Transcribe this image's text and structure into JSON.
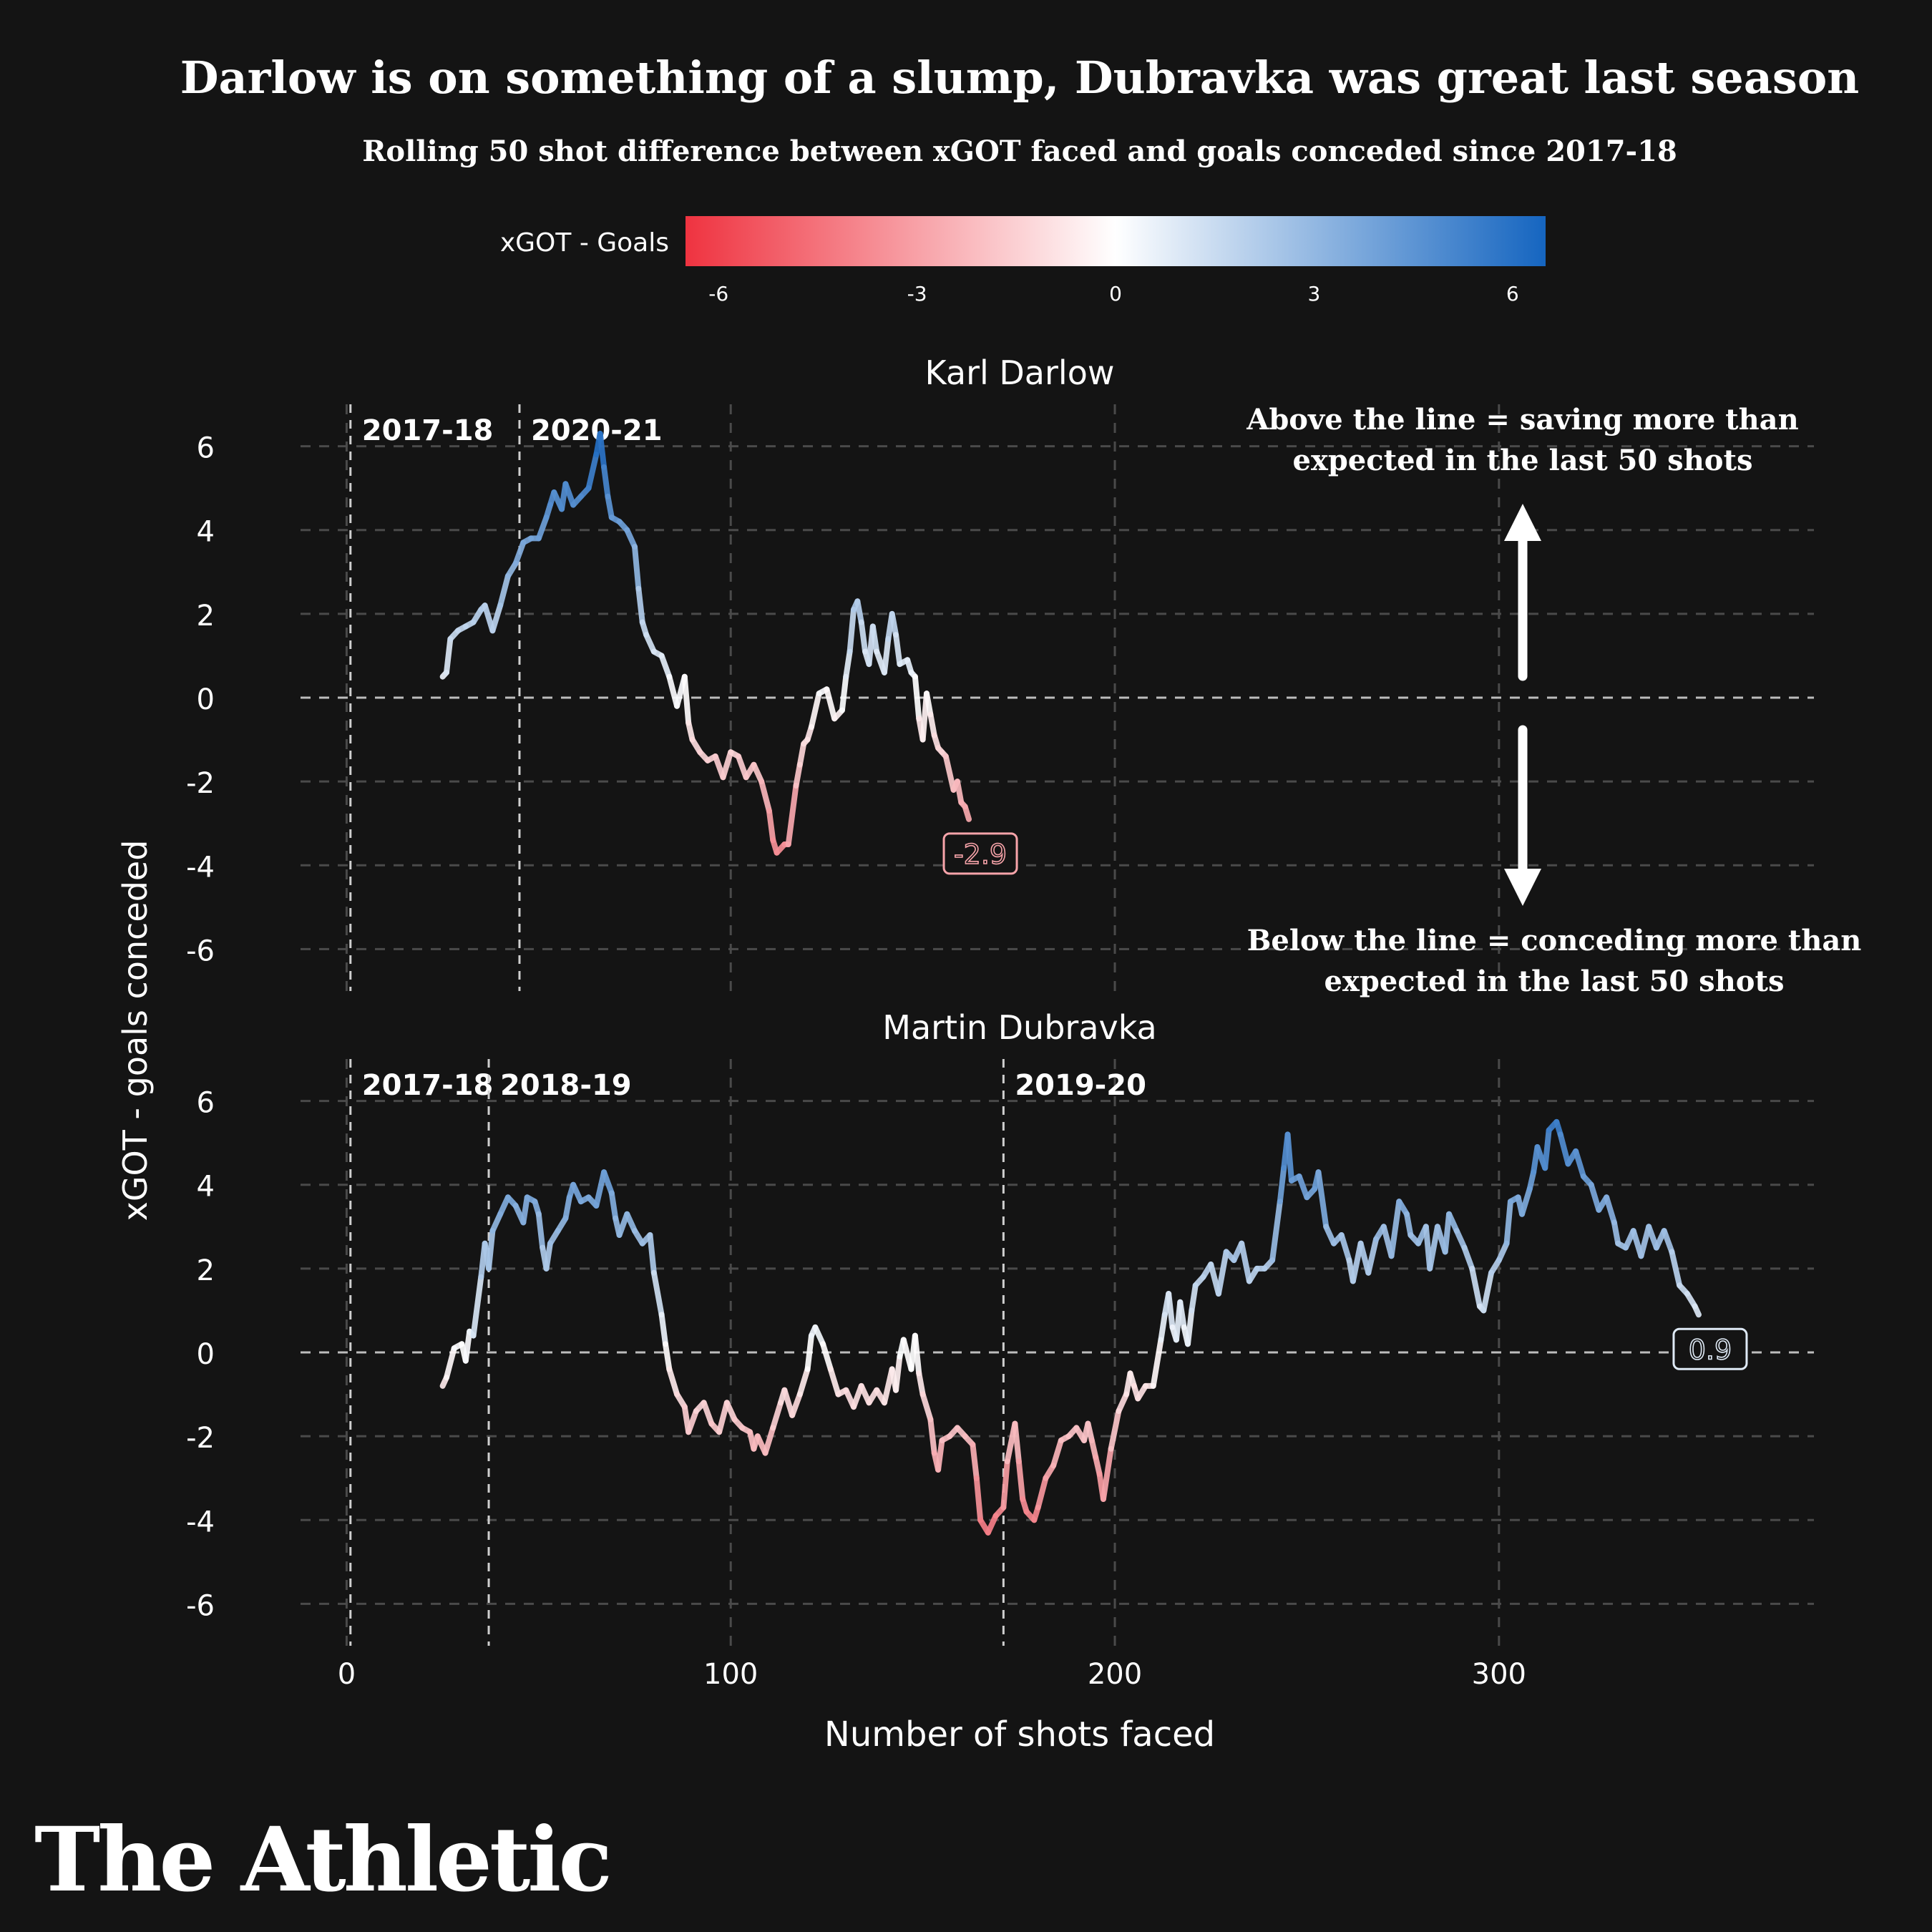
{
  "title": "Darlow is on something of a slump, Dubravka was great last season",
  "subtitle": "Rolling 50 shot difference between xGOT faced and goals conceded since 2017-18",
  "brand": "The Athletic",
  "legend": {
    "label": "xGOT - Goals",
    "ticks": [
      "-6",
      "-3",
      "0",
      "3",
      "6"
    ],
    "tick_values": [
      -6,
      -3,
      0,
      3,
      6
    ],
    "range": [
      -6.5,
      6.5
    ],
    "colors": {
      "low": "#ef3340",
      "mid": "#ffffff",
      "high": "#1565c0"
    }
  },
  "colors": {
    "background": "#141414",
    "text": "#ffffff",
    "grid": "#555555",
    "low": "#ef3340",
    "mid": "#ffffff",
    "high": "#1565c0"
  },
  "annotations": {
    "above": [
      "Above the line = saving more than",
      "expected in the last 50 shots"
    ],
    "below": [
      "Below the line = conceding more than",
      "expected in the last 50 shots"
    ]
  },
  "chart_data": {
    "type": "line",
    "xlabel": "Number of shots faced",
    "ylabel": "xGOT - goals conceded",
    "xlim": [
      -12,
      382
    ],
    "ylim": [
      -7,
      7
    ],
    "x_ticks": [
      "0",
      "100",
      "200",
      "300"
    ],
    "x_tick_values": [
      0,
      100,
      200,
      300
    ],
    "y_ticks": [
      "6",
      "4",
      "2",
      "0",
      "-2",
      "-4",
      "-6"
    ],
    "y_tick_values": [
      6,
      4,
      2,
      0,
      -2,
      -4,
      -6
    ],
    "grid": true,
    "panels": [
      {
        "name": "Karl Darlow",
        "seasons": [
          {
            "label": "2017-18",
            "x": 1
          },
          {
            "label": "2020-21",
            "x": 45
          }
        ],
        "end_label": "-2.9",
        "end_value": -2.9,
        "points": [
          [
            25,
            0.5
          ],
          [
            26,
            0.6
          ],
          [
            27,
            1.4
          ],
          [
            29,
            1.6
          ],
          [
            31,
            1.7
          ],
          [
            33,
            1.8
          ],
          [
            35,
            2.1
          ],
          [
            36,
            2.2
          ],
          [
            38,
            1.6
          ],
          [
            40,
            2.2
          ],
          [
            42,
            2.9
          ],
          [
            44,
            3.2
          ],
          [
            46,
            3.7
          ],
          [
            48,
            3.8
          ],
          [
            50,
            3.8
          ],
          [
            52,
            4.3
          ],
          [
            53,
            4.6
          ],
          [
            54,
            4.9
          ],
          [
            56,
            4.5
          ],
          [
            57,
            5.1
          ],
          [
            59,
            4.6
          ],
          [
            61,
            4.8
          ],
          [
            63,
            5.0
          ],
          [
            65,
            5.8
          ],
          [
            66,
            6.3
          ],
          [
            67,
            5.5
          ],
          [
            68,
            4.8
          ],
          [
            69,
            4.3
          ],
          [
            71,
            4.2
          ],
          [
            73,
            4.0
          ],
          [
            75,
            3.6
          ],
          [
            76,
            2.6
          ],
          [
            77,
            1.8
          ],
          [
            78,
            1.5
          ],
          [
            80,
            1.1
          ],
          [
            82,
            1.0
          ],
          [
            84,
            0.5
          ],
          [
            86,
            -0.2
          ],
          [
            88,
            0.5
          ],
          [
            89,
            -0.6
          ],
          [
            90,
            -1.0
          ],
          [
            92,
            -1.3
          ],
          [
            94,
            -1.5
          ],
          [
            96,
            -1.4
          ],
          [
            98,
            -1.9
          ],
          [
            100,
            -1.3
          ],
          [
            102,
            -1.4
          ],
          [
            104,
            -1.9
          ],
          [
            106,
            -1.6
          ],
          [
            108,
            -2.0
          ],
          [
            110,
            -2.7
          ],
          [
            111,
            -3.4
          ],
          [
            112,
            -3.7
          ],
          [
            114,
            -3.5
          ],
          [
            115,
            -3.5
          ],
          [
            117,
            -2.1
          ],
          [
            118,
            -1.6
          ],
          [
            119,
            -1.1
          ],
          [
            120,
            -1.0
          ],
          [
            121,
            -0.7
          ],
          [
            123,
            0.1
          ],
          [
            125,
            0.2
          ],
          [
            127,
            -0.5
          ],
          [
            129,
            -0.3
          ],
          [
            130,
            0.5
          ],
          [
            131,
            1.1
          ],
          [
            132,
            2.1
          ],
          [
            133,
            2.3
          ],
          [
            134,
            1.8
          ],
          [
            135,
            1.1
          ],
          [
            136,
            0.8
          ],
          [
            137,
            1.7
          ],
          [
            138,
            1.1
          ],
          [
            140,
            0.6
          ],
          [
            141,
            1.4
          ],
          [
            142,
            2.0
          ],
          [
            143,
            1.5
          ],
          [
            144,
            0.8
          ],
          [
            146,
            0.9
          ],
          [
            147,
            0.6
          ],
          [
            148,
            0.5
          ],
          [
            149,
            -0.5
          ],
          [
            150,
            -1.0
          ],
          [
            151,
            0.1
          ],
          [
            152,
            -0.4
          ],
          [
            153,
            -0.9
          ],
          [
            154,
            -1.2
          ],
          [
            155,
            -1.3
          ],
          [
            156,
            -1.4
          ],
          [
            158,
            -2.2
          ],
          [
            159,
            -2.0
          ],
          [
            160,
            -2.5
          ],
          [
            161,
            -2.6
          ],
          [
            162,
            -2.9
          ]
        ]
      },
      {
        "name": "Martin Dubravka",
        "seasons": [
          {
            "label": "2017-18",
            "x": 1
          },
          {
            "label": "2018-19",
            "x": 37
          },
          {
            "label": "2019-20",
            "x": 171
          }
        ],
        "end_label": "0.9",
        "end_value": 0.9,
        "points": [
          [
            25,
            -0.8
          ],
          [
            26,
            -0.6
          ],
          [
            28,
            0.1
          ],
          [
            30,
            0.2
          ],
          [
            31,
            -0.2
          ],
          [
            32,
            0.5
          ],
          [
            33,
            0.4
          ],
          [
            35,
            1.8
          ],
          [
            36,
            2.6
          ],
          [
            37,
            2.0
          ],
          [
            38,
            2.9
          ],
          [
            40,
            3.3
          ],
          [
            42,
            3.7
          ],
          [
            44,
            3.5
          ],
          [
            46,
            3.1
          ],
          [
            47,
            3.7
          ],
          [
            49,
            3.6
          ],
          [
            50,
            3.3
          ],
          [
            51,
            2.5
          ],
          [
            52,
            2.0
          ],
          [
            53,
            2.6
          ],
          [
            55,
            2.9
          ],
          [
            57,
            3.2
          ],
          [
            58,
            3.7
          ],
          [
            59,
            4.0
          ],
          [
            61,
            3.6
          ],
          [
            63,
            3.7
          ],
          [
            65,
            3.5
          ],
          [
            67,
            4.3
          ],
          [
            69,
            3.8
          ],
          [
            70,
            3.2
          ],
          [
            71,
            2.8
          ],
          [
            73,
            3.3
          ],
          [
            75,
            2.9
          ],
          [
            77,
            2.6
          ],
          [
            79,
            2.8
          ],
          [
            80,
            1.9
          ],
          [
            82,
            0.9
          ],
          [
            83,
            0.2
          ],
          [
            84,
            -0.4
          ],
          [
            86,
            -1.0
          ],
          [
            88,
            -1.3
          ],
          [
            89,
            -1.9
          ],
          [
            91,
            -1.4
          ],
          [
            93,
            -1.2
          ],
          [
            95,
            -1.7
          ],
          [
            97,
            -1.9
          ],
          [
            99,
            -1.2
          ],
          [
            101,
            -1.6
          ],
          [
            103,
            -1.8
          ],
          [
            105,
            -1.9
          ],
          [
            106,
            -2.3
          ],
          [
            107,
            -2.0
          ],
          [
            109,
            -2.4
          ],
          [
            111,
            -1.8
          ],
          [
            113,
            -1.2
          ],
          [
            114,
            -0.9
          ],
          [
            116,
            -1.5
          ],
          [
            118,
            -1.0
          ],
          [
            120,
            -0.4
          ],
          [
            121,
            0.4
          ],
          [
            122,
            0.6
          ],
          [
            124,
            0.2
          ],
          [
            126,
            -0.4
          ],
          [
            128,
            -1.0
          ],
          [
            130,
            -0.9
          ],
          [
            132,
            -1.3
          ],
          [
            134,
            -0.8
          ],
          [
            136,
            -1.2
          ],
          [
            138,
            -0.9
          ],
          [
            140,
            -1.2
          ],
          [
            142,
            -0.4
          ],
          [
            143,
            -0.9
          ],
          [
            144,
            -0.1
          ],
          [
            145,
            0.3
          ],
          [
            147,
            -0.4
          ],
          [
            148,
            0.4
          ],
          [
            149,
            -0.5
          ],
          [
            150,
            -1.0
          ],
          [
            152,
            -1.6
          ],
          [
            153,
            -2.4
          ],
          [
            154,
            -2.8
          ],
          [
            155,
            -2.1
          ],
          [
            157,
            -2.0
          ],
          [
            159,
            -1.8
          ],
          [
            161,
            -2.0
          ],
          [
            163,
            -2.2
          ],
          [
            164,
            -3.0
          ],
          [
            165,
            -4.0
          ],
          [
            167,
            -4.3
          ],
          [
            169,
            -3.9
          ],
          [
            171,
            -3.7
          ],
          [
            172,
            -2.6
          ],
          [
            174,
            -1.7
          ],
          [
            175,
            -2.6
          ],
          [
            176,
            -3.5
          ],
          [
            177,
            -3.8
          ],
          [
            179,
            -4.0
          ],
          [
            180,
            -3.7
          ],
          [
            182,
            -3.0
          ],
          [
            184,
            -2.7
          ],
          [
            186,
            -2.1
          ],
          [
            188,
            -2.0
          ],
          [
            190,
            -1.8
          ],
          [
            192,
            -2.1
          ],
          [
            193,
            -1.7
          ],
          [
            194,
            -2.1
          ],
          [
            195,
            -2.5
          ],
          [
            196,
            -2.9
          ],
          [
            197,
            -3.5
          ],
          [
            199,
            -2.3
          ],
          [
            201,
            -1.4
          ],
          [
            203,
            -1.0
          ],
          [
            204,
            -0.5
          ],
          [
            205,
            -0.8
          ],
          [
            206,
            -1.1
          ],
          [
            208,
            -0.8
          ],
          [
            210,
            -0.8
          ],
          [
            212,
            0.3
          ],
          [
            213,
            0.9
          ],
          [
            214,
            1.4
          ],
          [
            215,
            0.6
          ],
          [
            216,
            0.3
          ],
          [
            217,
            1.2
          ],
          [
            218,
            0.6
          ],
          [
            219,
            0.2
          ],
          [
            220,
            1.0
          ],
          [
            221,
            1.6
          ],
          [
            223,
            1.8
          ],
          [
            225,
            2.1
          ],
          [
            227,
            1.4
          ],
          [
            229,
            2.4
          ],
          [
            231,
            2.2
          ],
          [
            233,
            2.6
          ],
          [
            235,
            1.7
          ],
          [
            237,
            2.0
          ],
          [
            239,
            2.0
          ],
          [
            241,
            2.2
          ],
          [
            243,
            3.6
          ],
          [
            244,
            4.4
          ],
          [
            245,
            5.2
          ],
          [
            246,
            4.1
          ],
          [
            248,
            4.2
          ],
          [
            250,
            3.7
          ],
          [
            252,
            3.9
          ],
          [
            253,
            4.3
          ],
          [
            255,
            3.0
          ],
          [
            257,
            2.6
          ],
          [
            259,
            2.8
          ],
          [
            261,
            2.2
          ],
          [
            262,
            1.7
          ],
          [
            264,
            2.6
          ],
          [
            266,
            1.9
          ],
          [
            268,
            2.7
          ],
          [
            270,
            3.0
          ],
          [
            272,
            2.3
          ],
          [
            274,
            3.6
          ],
          [
            276,
            3.3
          ],
          [
            277,
            2.8
          ],
          [
            279,
            2.6
          ],
          [
            281,
            3.0
          ],
          [
            282,
            2.0
          ],
          [
            284,
            3.0
          ],
          [
            286,
            2.4
          ],
          [
            287,
            3.3
          ],
          [
            289,
            2.9
          ],
          [
            291,
            2.5
          ],
          [
            293,
            2.0
          ],
          [
            295,
            1.1
          ],
          [
            296,
            1.0
          ],
          [
            298,
            1.9
          ],
          [
            300,
            2.2
          ],
          [
            302,
            2.6
          ],
          [
            303,
            3.6
          ],
          [
            305,
            3.7
          ],
          [
            306,
            3.3
          ],
          [
            308,
            3.9
          ],
          [
            309,
            4.3
          ],
          [
            310,
            4.9
          ],
          [
            312,
            4.4
          ],
          [
            313,
            5.3
          ],
          [
            315,
            5.5
          ],
          [
            316,
            5.2
          ],
          [
            318,
            4.5
          ],
          [
            320,
            4.8
          ],
          [
            322,
            4.2
          ],
          [
            324,
            4.0
          ],
          [
            326,
            3.4
          ],
          [
            328,
            3.7
          ],
          [
            330,
            3.1
          ],
          [
            331,
            2.6
          ],
          [
            333,
            2.5
          ],
          [
            335,
            2.9
          ],
          [
            337,
            2.3
          ],
          [
            339,
            3.0
          ],
          [
            341,
            2.5
          ],
          [
            343,
            2.9
          ],
          [
            345,
            2.4
          ],
          [
            347,
            1.6
          ],
          [
            349,
            1.4
          ],
          [
            351,
            1.1
          ],
          [
            352,
            0.9
          ]
        ]
      }
    ]
  }
}
